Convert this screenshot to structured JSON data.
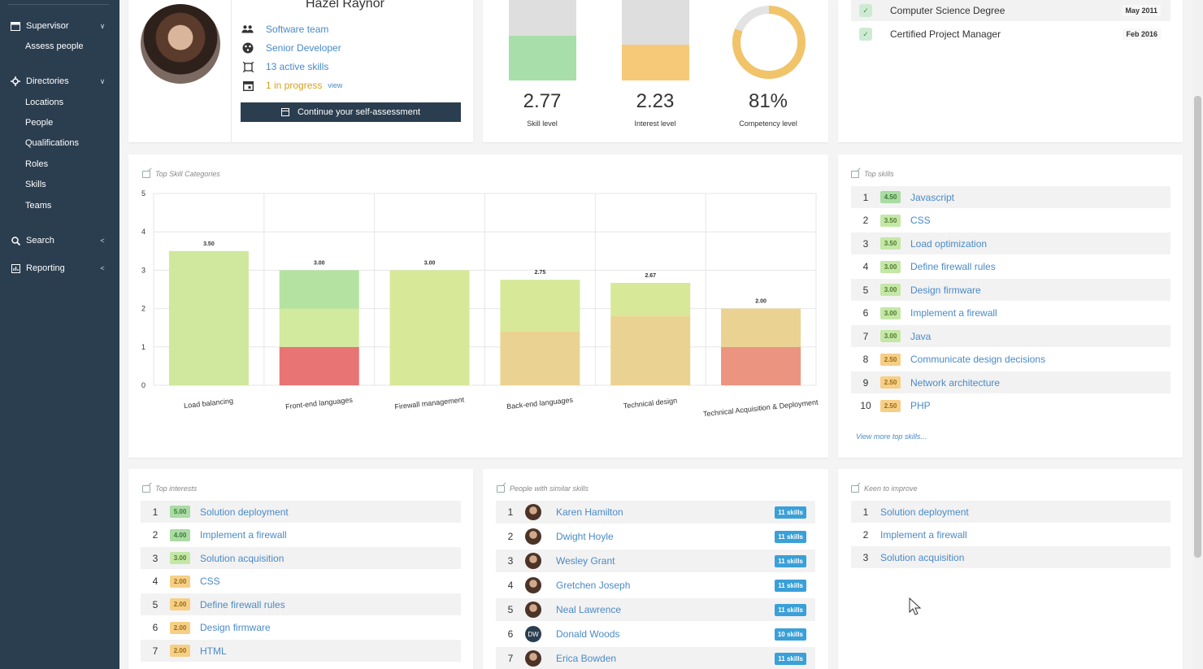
{
  "sidebar": {
    "supervisor": {
      "label": "Supervisor",
      "items": [
        "Assess people"
      ]
    },
    "directories": {
      "label": "Directories",
      "items": [
        "Locations",
        "People",
        "Qualifications",
        "Roles",
        "Skills",
        "Teams"
      ]
    },
    "search": {
      "label": "Search"
    },
    "reporting": {
      "label": "Reporting"
    }
  },
  "profile": {
    "name": "Hazel Raynor",
    "team": "Software team",
    "role": "Senior Developer",
    "active_skills": "13 active skills",
    "in_progress": "1 in progress",
    "view_link": "view",
    "continue_button": "Continue your self-assessment"
  },
  "stats": {
    "skill": {
      "value": "2.77",
      "label": "Skill level",
      "fill": 0.554,
      "color": "#a8deaa"
    },
    "interest": {
      "value": "2.23",
      "label": "Interest level",
      "fill": 0.446,
      "color": "#f6c978"
    },
    "competency": {
      "value": "81%",
      "label": "Competency level",
      "fraction": 0.81,
      "color": "#f1c46a"
    }
  },
  "qualifications": [
    {
      "name": "Computer Science Degree",
      "date": "May 2011"
    },
    {
      "name": "Certified Project Manager",
      "date": "Feb 2016"
    }
  ],
  "top_skill_categories": {
    "title": "Top Skill Categories"
  },
  "chart_data": {
    "type": "bar",
    "categories": [
      "Load balancing",
      "Front-end languages",
      "Firewall management",
      "Back-end languages",
      "Technical design",
      "Technical Acquisition & Deployment"
    ],
    "values": [
      3.5,
      3.0,
      3.0,
      2.75,
      2.67,
      2.0
    ],
    "data_labels": [
      "3.50",
      "3.00",
      "3.00",
      "2.75",
      "2.67",
      "2.00"
    ],
    "segments": [
      [
        {
          "value": 3.5,
          "color": "#cfe89d"
        }
      ],
      [
        {
          "value": 1.0,
          "color": "#e87474"
        },
        {
          "value": 1.0,
          "color": "#d2ea9d"
        },
        {
          "value": 1.0,
          "color": "#b3e2a1"
        }
      ],
      [
        {
          "value": 3.0,
          "color": "#d7e898"
        }
      ],
      [
        {
          "value": 1.4,
          "color": "#ead392"
        },
        {
          "value": 1.35,
          "color": "#d7e898"
        }
      ],
      [
        {
          "value": 1.8,
          "color": "#ead392"
        },
        {
          "value": 0.87,
          "color": "#d7e898"
        }
      ],
      [
        {
          "value": 1.0,
          "color": "#eb9480"
        },
        {
          "value": 1.0,
          "color": "#ead392"
        }
      ]
    ],
    "ylim": [
      0,
      5
    ],
    "yticks": [
      "0",
      "1",
      "2",
      "3",
      "4",
      "5"
    ],
    "grid": true,
    "title": "Top Skill Categories",
    "xlabel": "",
    "ylabel": ""
  },
  "top_skills": {
    "title": "Top skills",
    "items": [
      {
        "rank": "1",
        "score": "4.50",
        "name": "Javascript",
        "level": "hi"
      },
      {
        "rank": "2",
        "score": "3.50",
        "name": "CSS",
        "level": "mid"
      },
      {
        "rank": "3",
        "score": "3.50",
        "name": "Load optimization",
        "level": "mid"
      },
      {
        "rank": "4",
        "score": "3.00",
        "name": "Define firewall rules",
        "level": "mid"
      },
      {
        "rank": "5",
        "score": "3.00",
        "name": "Design firmware",
        "level": "mid"
      },
      {
        "rank": "6",
        "score": "3.00",
        "name": "Implement a firewall",
        "level": "mid"
      },
      {
        "rank": "7",
        "score": "3.00",
        "name": "Java",
        "level": "mid"
      },
      {
        "rank": "8",
        "score": "2.50",
        "name": "Communicate design decisions",
        "level": "low"
      },
      {
        "rank": "9",
        "score": "2.50",
        "name": "Network architecture",
        "level": "low"
      },
      {
        "rank": "10",
        "score": "2.50",
        "name": "PHP",
        "level": "low"
      }
    ],
    "view_more": "View more top skills..."
  },
  "top_interests": {
    "title": "Top interests",
    "items": [
      {
        "rank": "1",
        "score": "5.00",
        "name": "Solution deployment",
        "level": "hi"
      },
      {
        "rank": "2",
        "score": "4.00",
        "name": "Implement a firewall",
        "level": "hi"
      },
      {
        "rank": "3",
        "score": "3.00",
        "name": "Solution acquisition",
        "level": "mid"
      },
      {
        "rank": "4",
        "score": "2.00",
        "name": "CSS",
        "level": "low"
      },
      {
        "rank": "5",
        "score": "2.00",
        "name": "Define firewall rules",
        "level": "low"
      },
      {
        "rank": "6",
        "score": "2.00",
        "name": "Design firmware",
        "level": "low"
      },
      {
        "rank": "7",
        "score": "2.00",
        "name": "HTML",
        "level": "low"
      }
    ]
  },
  "similar_people": {
    "title": "People with similar skills",
    "items": [
      {
        "rank": "1",
        "name": "Karen Hamilton",
        "skills": "11 skills",
        "initials": ""
      },
      {
        "rank": "2",
        "name": "Dwight Hoyle",
        "skills": "11 skills",
        "initials": ""
      },
      {
        "rank": "3",
        "name": "Wesley Grant",
        "skills": "11 skills",
        "initials": ""
      },
      {
        "rank": "4",
        "name": "Gretchen Joseph",
        "skills": "11 skills",
        "initials": ""
      },
      {
        "rank": "5",
        "name": "Neal Lawrence",
        "skills": "11 skills",
        "initials": ""
      },
      {
        "rank": "6",
        "name": "Donald Woods",
        "skills": "10 skills",
        "initials": "DW"
      },
      {
        "rank": "7",
        "name": "Erica Bowden",
        "skills": "11 skills",
        "initials": ""
      }
    ]
  },
  "keen_to_improve": {
    "title": "Keen to improve",
    "items": [
      {
        "rank": "1",
        "name": "Solution deployment"
      },
      {
        "rank": "2",
        "name": "Implement a firewall"
      },
      {
        "rank": "3",
        "name": "Solution acquisition"
      }
    ]
  }
}
